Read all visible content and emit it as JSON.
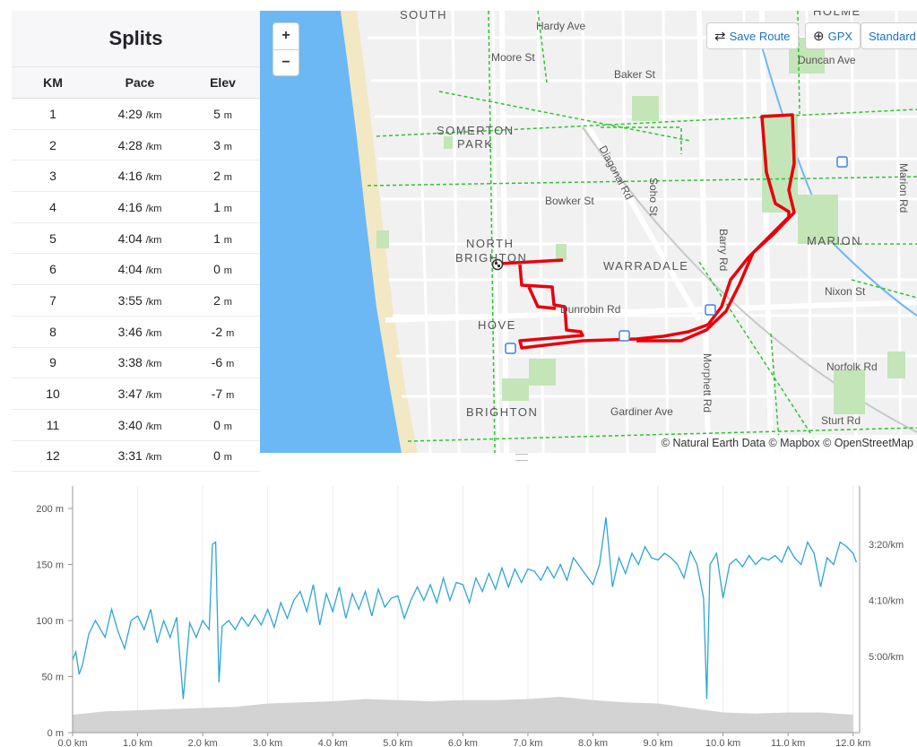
{
  "splits": {
    "title": "Splits",
    "columns": [
      "KM",
      "Pace",
      "Elev"
    ],
    "pace_unit": "/km",
    "elev_unit": "m",
    "rows": [
      {
        "km": "1",
        "pace": "4:29",
        "elev": "5"
      },
      {
        "km": "2",
        "pace": "4:28",
        "elev": "3"
      },
      {
        "km": "3",
        "pace": "4:16",
        "elev": "2"
      },
      {
        "km": "4",
        "pace": "4:16",
        "elev": "1"
      },
      {
        "km": "5",
        "pace": "4:04",
        "elev": "1"
      },
      {
        "km": "6",
        "pace": "4:04",
        "elev": "0"
      },
      {
        "km": "7",
        "pace": "3:55",
        "elev": "2"
      },
      {
        "km": "8",
        "pace": "3:46",
        "elev": "-2"
      },
      {
        "km": "9",
        "pace": "3:38",
        "elev": "-6"
      },
      {
        "km": "10",
        "pace": "3:47",
        "elev": "-7"
      },
      {
        "km": "11",
        "pace": "3:40",
        "elev": "0"
      },
      {
        "km": "12",
        "pace": "3:31",
        "elev": "0"
      }
    ]
  },
  "map": {
    "zoom_in": "+",
    "zoom_out": "−",
    "save_route": "Save Route",
    "gpx": "GPX",
    "standard": "Standard",
    "attribution": "© Natural Earth Data © Mapbox © OpenStreetMap",
    "route_color": "#e8000b",
    "water_color": "#6cb8f5",
    "park_color": "#c4e5b8",
    "labels": {
      "south": "SOUTH",
      "holme": "HOLME",
      "hardy_ave": "Hardy Ave",
      "moore_st": "Moore St",
      "baker_st": "Baker St",
      "duncan_ave": "Duncan Ave",
      "somerton": "SOMERTON",
      "park": "PARK",
      "diagonal_rd": "Diagonal Rd",
      "soho_st": "Soho St",
      "marion_rd": "Marion Rd",
      "bowker_st": "Bowker St",
      "north": "NORTH",
      "brighton_n": "BRIGHTON",
      "warradale": "WARRADALE",
      "barry_rd": "Barry Rd",
      "marion": "MARION",
      "nixon_st": "Nixon St",
      "dunrobin_rd": "Dunrobin Rd",
      "hove": "HOVE",
      "morphett_rd": "Morphett Rd",
      "norfolk_rd": "Norfolk Rd",
      "brighton": "BRIGHTON",
      "gardiner_ave": "Gardiner Ave",
      "sturt_rd": "Sturt Rd"
    }
  },
  "chart_data": {
    "type": "area",
    "x_tick_labels": [
      "0.0 km",
      "1.0 km",
      "2.0 km",
      "3.0 km",
      "4.0 km",
      "5.0 km",
      "6.0 km",
      "7.0 km",
      "8.0 km",
      "9.0 km",
      "10.0 km",
      "11.0 km",
      "12.0 km"
    ],
    "xlim": [
      0,
      12.1
    ],
    "left_axis": {
      "tick_labels": [
        "0 m",
        "50 m",
        "100 m",
        "150 m",
        "200 m"
      ],
      "ylim": [
        0,
        220
      ]
    },
    "right_axis": {
      "tick_labels": [
        "3:20/km",
        "4:10/km",
        "5:00/km"
      ]
    },
    "elevation_color": "#d3d3d3",
    "pace_color": "#2ea4d8",
    "series": [
      {
        "label": "elevation (m)",
        "x": [
          0,
          0.5,
          1.0,
          1.5,
          2.0,
          2.5,
          3.0,
          3.5,
          4.0,
          4.5,
          5.0,
          5.5,
          6.0,
          6.5,
          7.0,
          7.5,
          8.0,
          8.5,
          9.0,
          9.5,
          10.0,
          10.5,
          11.0,
          11.5,
          12.0
        ],
        "values": [
          16,
          19,
          20,
          21,
          22,
          23,
          26,
          27,
          28,
          30,
          29,
          28,
          29,
          29,
          30,
          32,
          29,
          27,
          26,
          22,
          18,
          17,
          18,
          18,
          16
        ]
      },
      {
        "label": "pace (shown on 0–200 m scale)",
        "x": [
          0,
          0.05,
          0.1,
          0.15,
          0.25,
          0.35,
          0.5,
          0.6,
          0.7,
          0.8,
          0.9,
          1.0,
          1.1,
          1.2,
          1.3,
          1.4,
          1.5,
          1.6,
          1.7,
          1.8,
          1.9,
          2.0,
          2.1,
          2.15,
          2.2,
          2.25,
          2.3,
          2.4,
          2.5,
          2.6,
          2.7,
          2.8,
          2.9,
          3.0,
          3.1,
          3.2,
          3.3,
          3.4,
          3.5,
          3.6,
          3.7,
          3.8,
          3.9,
          4.0,
          4.1,
          4.2,
          4.3,
          4.4,
          4.5,
          4.6,
          4.7,
          4.8,
          4.9,
          5.0,
          5.1,
          5.2,
          5.3,
          5.4,
          5.5,
          5.6,
          5.7,
          5.8,
          5.9,
          6.0,
          6.1,
          6.2,
          6.3,
          6.4,
          6.5,
          6.6,
          6.7,
          6.8,
          6.9,
          7.0,
          7.1,
          7.2,
          7.3,
          7.4,
          7.5,
          7.6,
          7.7,
          7.8,
          7.9,
          8.0,
          8.1,
          8.2,
          8.3,
          8.4,
          8.5,
          8.6,
          8.7,
          8.8,
          8.9,
          9.0,
          9.1,
          9.2,
          9.3,
          9.4,
          9.5,
          9.6,
          9.7,
          9.75,
          9.8,
          9.9,
          10.0,
          10.1,
          10.2,
          10.3,
          10.4,
          10.5,
          10.6,
          10.7,
          10.8,
          10.9,
          11.0,
          11.1,
          11.2,
          11.3,
          11.4,
          11.5,
          11.6,
          11.7,
          11.8,
          11.9,
          12.0,
          12.05
        ],
        "values": [
          65,
          72,
          52,
          60,
          88,
          100,
          85,
          110,
          90,
          75,
          100,
          104,
          92,
          110,
          80,
          100,
          85,
          103,
          30,
          98,
          85,
          100,
          92,
          168,
          170,
          45,
          95,
          100,
          92,
          103,
          95,
          105,
          96,
          110,
          94,
          116,
          102,
          118,
          126,
          108,
          132,
          96,
          124,
          108,
          130,
          102,
          124,
          110,
          126,
          104,
          128,
          112,
          120,
          122,
          102,
          118,
          130,
          118,
          132,
          116,
          138,
          118,
          134,
          132,
          116,
          138,
          126,
          142,
          128,
          147,
          130,
          146,
          134,
          146,
          144,
          136,
          148,
          138,
          150,
          136,
          156,
          148,
          140,
          132,
          150,
          192,
          130,
          156,
          142,
          160,
          150,
          166,
          156,
          154,
          160,
          156,
          150,
          138,
          162,
          150,
          120,
          30,
          150,
          160,
          120,
          150,
          155,
          148,
          158,
          150,
          156,
          154,
          158,
          152,
          166,
          156,
          150,
          170,
          160,
          130,
          156,
          150,
          170,
          166,
          160,
          152
        ]
      }
    ]
  }
}
